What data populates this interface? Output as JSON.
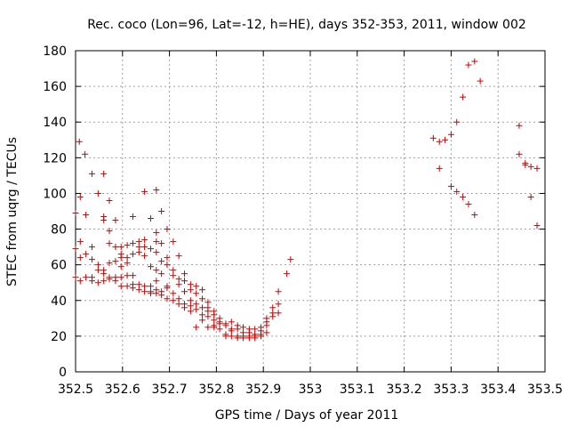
{
  "chart_data": {
    "type": "scatter",
    "title": "Rec. coco (Lon=96, Lat=-12, h=HE), days 352-353, 2011, window 002",
    "xlabel": "GPS time / Days of year 2011",
    "ylabel": "STEC from uqrg / TECUs",
    "xlim": [
      352.5,
      353.5
    ],
    "ylim": [
      0,
      180
    ],
    "grid": true,
    "marker": "+",
    "color": "#cc0000",
    "x_ticks": [
      "352.5",
      "352.6",
      "352.7",
      "352.8",
      "352.9",
      "353",
      "353.1",
      "353.2",
      "353.3",
      "353.4",
      "353.5"
    ],
    "x_tick_values": [
      352.5,
      352.6,
      352.7,
      352.8,
      352.9,
      353.0,
      353.1,
      353.2,
      353.3,
      353.4,
      353.5
    ],
    "y_ticks": [
      "0",
      "20",
      "40",
      "60",
      "80",
      "100",
      "120",
      "140",
      "160",
      "180"
    ],
    "y_tick_values": [
      0,
      20,
      40,
      60,
      80,
      100,
      120,
      140,
      160,
      180
    ],
    "points": [
      [
        352.5,
        89
      ],
      [
        352.5,
        69
      ],
      [
        352.5,
        53
      ],
      [
        352.508,
        129
      ],
      [
        352.51,
        98
      ],
      [
        352.51,
        73
      ],
      [
        352.51,
        64
      ],
      [
        352.51,
        51
      ],
      [
        352.52,
        122
      ],
      [
        352.522,
        88
      ],
      [
        352.522,
        66
      ],
      [
        352.522,
        53
      ],
      [
        352.535,
        111
      ],
      [
        352.535,
        70
      ],
      [
        352.535,
        63
      ],
      [
        352.535,
        53
      ],
      [
        352.535,
        51
      ],
      [
        352.548,
        100
      ],
      [
        352.548,
        60
      ],
      [
        352.548,
        57
      ],
      [
        352.548,
        50
      ],
      [
        352.56,
        111
      ],
      [
        352.56,
        87
      ],
      [
        352.56,
        85
      ],
      [
        352.56,
        57
      ],
      [
        352.56,
        55
      ],
      [
        352.56,
        51
      ],
      [
        352.572,
        96
      ],
      [
        352.572,
        79
      ],
      [
        352.572,
        72
      ],
      [
        352.572,
        61
      ],
      [
        352.572,
        53
      ],
      [
        352.572,
        52
      ],
      [
        352.585,
        85
      ],
      [
        352.585,
        70
      ],
      [
        352.585,
        62
      ],
      [
        352.585,
        53
      ],
      [
        352.585,
        51
      ],
      [
        352.597,
        70
      ],
      [
        352.597,
        66
      ],
      [
        352.597,
        64
      ],
      [
        352.597,
        59
      ],
      [
        352.597,
        53
      ],
      [
        352.597,
        48
      ],
      [
        352.61,
        71
      ],
      [
        352.61,
        64
      ],
      [
        352.61,
        61
      ],
      [
        352.61,
        54
      ],
      [
        352.61,
        48
      ],
      [
        352.622,
        87
      ],
      [
        352.622,
        72
      ],
      [
        352.622,
        66
      ],
      [
        352.622,
        54
      ],
      [
        352.622,
        49
      ],
      [
        352.622,
        47
      ],
      [
        352.635,
        73
      ],
      [
        352.635,
        70
      ],
      [
        352.635,
        67
      ],
      [
        352.635,
        49
      ],
      [
        352.635,
        46
      ],
      [
        352.647,
        101
      ],
      [
        352.647,
        74
      ],
      [
        352.647,
        70
      ],
      [
        352.647,
        65
      ],
      [
        352.647,
        48
      ],
      [
        352.647,
        45
      ],
      [
        352.66,
        86
      ],
      [
        352.66,
        69
      ],
      [
        352.66,
        59
      ],
      [
        352.66,
        48
      ],
      [
        352.66,
        45
      ],
      [
        352.66,
        44
      ],
      [
        352.672,
        102
      ],
      [
        352.672,
        78
      ],
      [
        352.672,
        73
      ],
      [
        352.672,
        67
      ],
      [
        352.672,
        57
      ],
      [
        352.672,
        51
      ],
      [
        352.672,
        46
      ],
      [
        352.672,
        44
      ],
      [
        352.683,
        90
      ],
      [
        352.683,
        72
      ],
      [
        352.683,
        62
      ],
      [
        352.683,
        55
      ],
      [
        352.683,
        45
      ],
      [
        352.683,
        43
      ],
      [
        352.695,
        80
      ],
      [
        352.695,
        64
      ],
      [
        352.695,
        60
      ],
      [
        352.695,
        48
      ],
      [
        352.695,
        47
      ],
      [
        352.695,
        41
      ],
      [
        352.708,
        73
      ],
      [
        352.708,
        57
      ],
      [
        352.708,
        54
      ],
      [
        352.708,
        44
      ],
      [
        352.708,
        40
      ],
      [
        352.72,
        65
      ],
      [
        352.72,
        52
      ],
      [
        352.72,
        49
      ],
      [
        352.72,
        41
      ],
      [
        352.72,
        38
      ],
      [
        352.732,
        55
      ],
      [
        352.732,
        51
      ],
      [
        352.732,
        45
      ],
      [
        352.732,
        38
      ],
      [
        352.732,
        36
      ],
      [
        352.745,
        49
      ],
      [
        352.745,
        46
      ],
      [
        352.745,
        40
      ],
      [
        352.745,
        37
      ],
      [
        352.745,
        34
      ],
      [
        352.757,
        48
      ],
      [
        352.757,
        44
      ],
      [
        352.757,
        38
      ],
      [
        352.757,
        35
      ],
      [
        352.757,
        25
      ],
      [
        352.77,
        46
      ],
      [
        352.77,
        41
      ],
      [
        352.77,
        36
      ],
      [
        352.77,
        32
      ],
      [
        352.77,
        29
      ],
      [
        352.782,
        39
      ],
      [
        352.782,
        36
      ],
      [
        352.782,
        34
      ],
      [
        352.782,
        31
      ],
      [
        352.782,
        25
      ],
      [
        352.795,
        34
      ],
      [
        352.795,
        32
      ],
      [
        352.795,
        29
      ],
      [
        352.795,
        26
      ],
      [
        352.795,
        25
      ],
      [
        352.807,
        30
      ],
      [
        352.807,
        28
      ],
      [
        352.807,
        27
      ],
      [
        352.807,
        24
      ],
      [
        352.82,
        27
      ],
      [
        352.82,
        26
      ],
      [
        352.82,
        21
      ],
      [
        352.82,
        20
      ],
      [
        352.832,
        28
      ],
      [
        352.832,
        24
      ],
      [
        352.832,
        23
      ],
      [
        352.832,
        20
      ],
      [
        352.845,
        26
      ],
      [
        352.845,
        24
      ],
      [
        352.845,
        20
      ],
      [
        352.845,
        19
      ],
      [
        352.857,
        25
      ],
      [
        352.857,
        22
      ],
      [
        352.857,
        20
      ],
      [
        352.857,
        19
      ],
      [
        352.87,
        24
      ],
      [
        352.87,
        22
      ],
      [
        352.87,
        20
      ],
      [
        352.87,
        19
      ],
      [
        352.882,
        24
      ],
      [
        352.882,
        21
      ],
      [
        352.882,
        20
      ],
      [
        352.882,
        19
      ],
      [
        352.895,
        25
      ],
      [
        352.895,
        23
      ],
      [
        352.895,
        21
      ],
      [
        352.895,
        20
      ],
      [
        352.907,
        30
      ],
      [
        352.907,
        28
      ],
      [
        352.907,
        26
      ],
      [
        352.907,
        22
      ],
      [
        352.92,
        36
      ],
      [
        352.92,
        33
      ],
      [
        352.92,
        31
      ],
      [
        352.932,
        45
      ],
      [
        352.932,
        38
      ],
      [
        352.932,
        33
      ],
      [
        352.95,
        55
      ],
      [
        352.958,
        63
      ],
      [
        353.262,
        131
      ],
      [
        353.275,
        129
      ],
      [
        353.275,
        114
      ],
      [
        353.287,
        130
      ],
      [
        353.3,
        104
      ],
      [
        353.3,
        133
      ],
      [
        353.312,
        101
      ],
      [
        353.312,
        140
      ],
      [
        353.325,
        98
      ],
      [
        353.325,
        154
      ],
      [
        353.337,
        94
      ],
      [
        353.337,
        172
      ],
      [
        353.35,
        88
      ],
      [
        353.35,
        174
      ],
      [
        353.362,
        163
      ],
      [
        353.445,
        138
      ],
      [
        353.445,
        122
      ],
      [
        353.458,
        117
      ],
      [
        353.458,
        116
      ],
      [
        353.47,
        115
      ],
      [
        353.47,
        98
      ],
      [
        353.483,
        114
      ],
      [
        353.483,
        82
      ]
    ]
  }
}
